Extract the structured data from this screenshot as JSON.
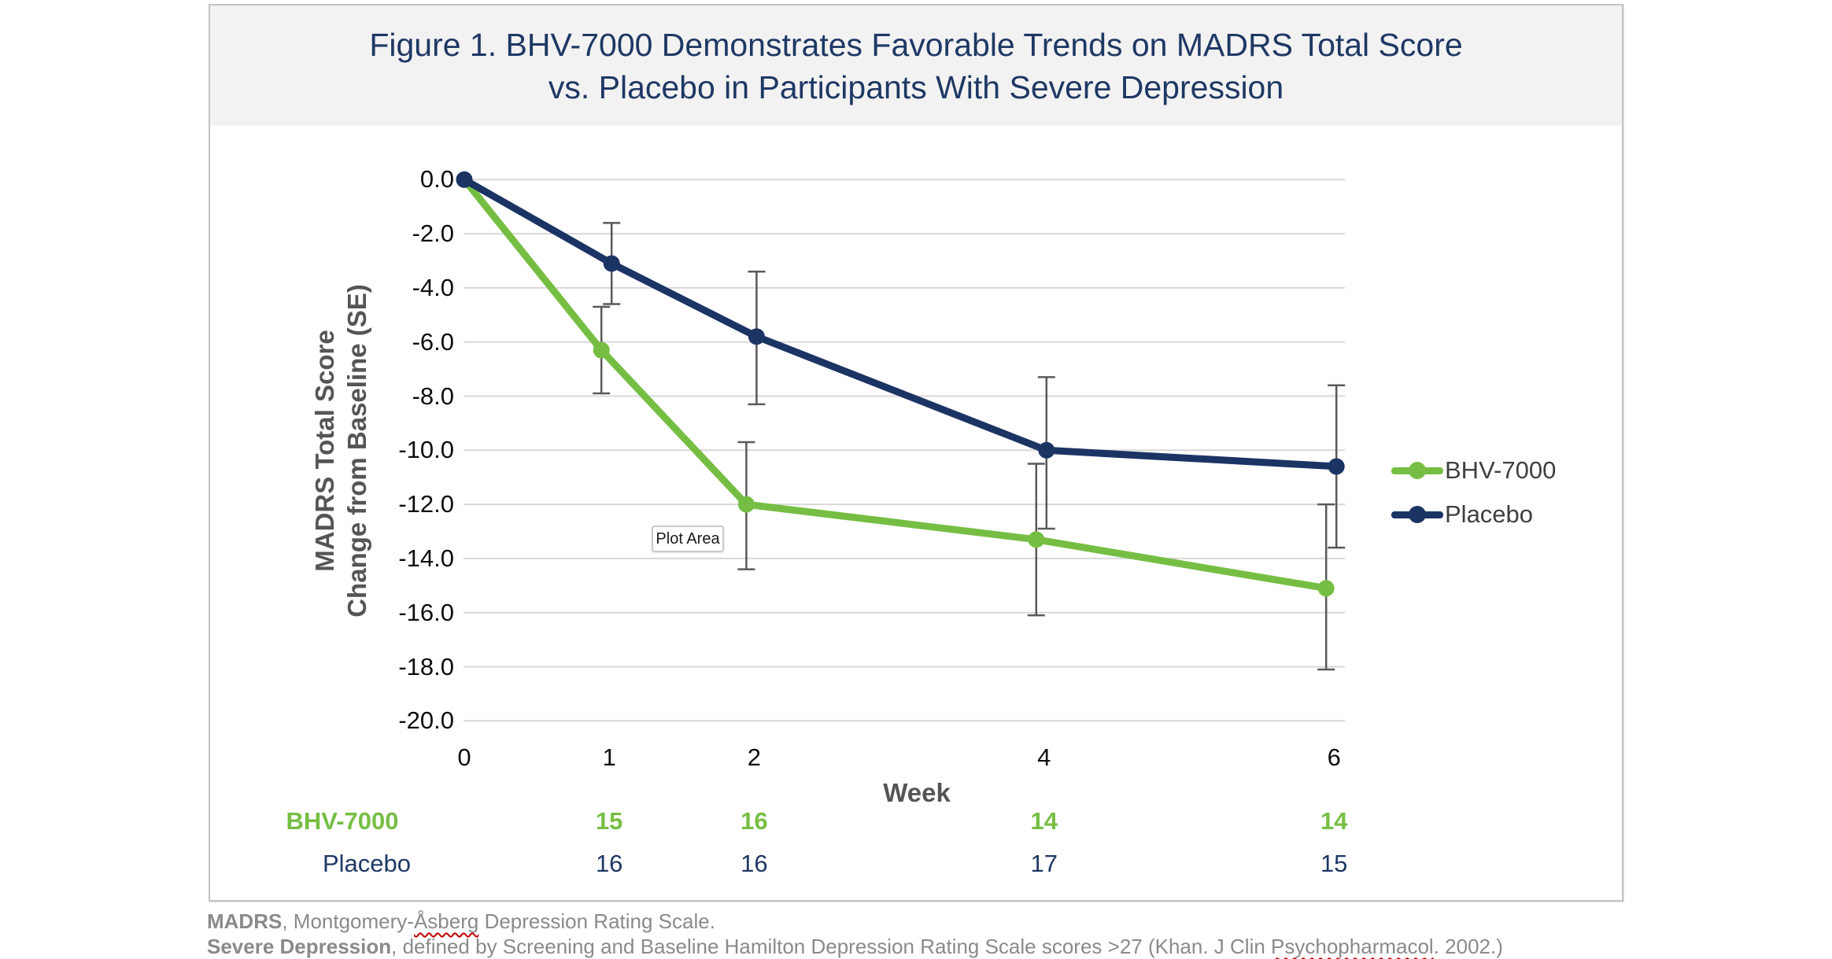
{
  "figure": {
    "title_line1": "Figure 1. BHV-7000 Demonstrates Favorable Trends on MADRS Total Score",
    "title_line2": "vs. Placebo in Participants With Severe Depression"
  },
  "chart_data": {
    "type": "line",
    "title": "Figure 1. BHV-7000 Demonstrates Favorable Trends on MADRS Total Score vs. Placebo in Participants With Severe Depression",
    "x": [
      0,
      1,
      2,
      4,
      6
    ],
    "xtick_labels": [
      "0",
      "1",
      "2",
      "4",
      "6"
    ],
    "xlabel": "Week",
    "ylabel_line1": "MADRS Total Score",
    "ylabel_line2": "Change from Baseline (SE)",
    "ylim": [
      -20,
      0
    ],
    "ytick_values": [
      0,
      -2,
      -4,
      -6,
      -8,
      -10,
      -12,
      -14,
      -16,
      -18,
      -20
    ],
    "ytick_labels": [
      "0.0",
      "-2.0",
      "-4.0",
      "-6.0",
      "-8.0",
      "-10.0",
      "-12.0",
      "-14.0",
      "-16.0",
      "-18.0",
      "-20.0"
    ],
    "grid": "horizontal",
    "legend_position": "right",
    "series": [
      {
        "name": "BHV-7000",
        "color": "#76be43",
        "values": [
          0,
          -6.3,
          -12.0,
          -13.3,
          -15.1
        ],
        "error_high": [
          null,
          -4.7,
          -9.7,
          -10.5,
          -12.0
        ],
        "error_low": [
          null,
          -7.9,
          -14.4,
          -16.1,
          -18.1
        ]
      },
      {
        "name": "Placebo",
        "color": "#1b3464",
        "values": [
          0,
          -3.1,
          -5.8,
          -10.0,
          -10.6
        ],
        "error_high": [
          null,
          -1.6,
          -3.4,
          -7.3,
          -7.6
        ],
        "error_low": [
          null,
          -4.6,
          -8.3,
          -12.9,
          -13.6
        ]
      }
    ],
    "n_table": {
      "weeks": [
        1,
        2,
        4,
        6
      ],
      "rows": [
        {
          "label": "BHV-7000",
          "color": "#76be43",
          "bold": true,
          "values": [
            "15",
            "16",
            "14",
            "14"
          ]
        },
        {
          "label": "Placebo",
          "color": "#1f3864",
          "bold": false,
          "values": [
            "16",
            "16",
            "17",
            "15"
          ]
        }
      ]
    }
  },
  "tooltip": {
    "label": "Plot Area"
  },
  "footnotes": {
    "line1": [
      {
        "text": "MADRS",
        "bold": true
      },
      {
        "text": ", Montgomery-",
        "bold": false
      },
      {
        "text": "Åsberg",
        "bold": false,
        "squiggle": true
      },
      {
        "text": " Depression Rating Scale.",
        "bold": false
      }
    ],
    "line2": [
      {
        "text": "Severe Depression",
        "bold": true
      },
      {
        "text": ", defined by Screening and Baseline Hamilton Depression Rating Scale scores >27 (Khan. J Clin ",
        "bold": false
      },
      {
        "text": "Psychopharmacol",
        "bold": false,
        "squiggle": true
      },
      {
        "text": ". 2002.)",
        "bold": false
      }
    ]
  },
  "colors": {
    "title_navy": "#1f3864",
    "gridline": "#d8d8d8",
    "error_bar": "#595959",
    "band": "#f2f2f2",
    "border": "#c4c4c4"
  }
}
